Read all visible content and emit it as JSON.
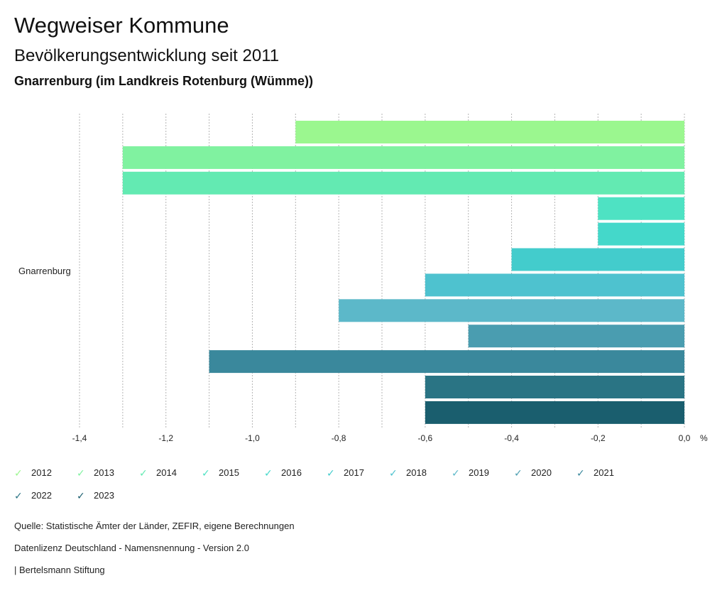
{
  "header": {
    "title": "Wegweiser Kommune",
    "subtitle": "Bevölkerungsentwicklung seit 2011",
    "region": "Gnarrenburg (im Landkreis Rotenburg (Wümme))"
  },
  "chart_data": {
    "type": "bar",
    "orientation": "horizontal",
    "category": "Gnarrenburg",
    "unit": "%",
    "xlim": [
      -1.4,
      0.0
    ],
    "ticks": [
      "-1,4",
      "-1,2",
      "-1,0",
      "-0,8",
      "-0,6",
      "-0,4",
      "-0,2",
      "0,0"
    ],
    "tick_values": [
      -1.4,
      -1.2,
      -1.0,
      -0.8,
      -0.6,
      -0.4,
      -0.2,
      0.0
    ],
    "series": [
      {
        "name": "2012",
        "value": -0.9,
        "color": "#9bf78f"
      },
      {
        "name": "2013",
        "value": -1.3,
        "color": "#80f2a0"
      },
      {
        "name": "2014",
        "value": -1.3,
        "color": "#63eab2"
      },
      {
        "name": "2015",
        "value": -0.2,
        "color": "#4ee2c3"
      },
      {
        "name": "2016",
        "value": -0.2,
        "color": "#44d8ca"
      },
      {
        "name": "2017",
        "value": -0.4,
        "color": "#43cccc"
      },
      {
        "name": "2018",
        "value": -0.6,
        "color": "#4ec2cf"
      },
      {
        "name": "2019",
        "value": -0.8,
        "color": "#5cb8c9"
      },
      {
        "name": "2020",
        "value": -0.5,
        "color": "#4a9db0"
      },
      {
        "name": "2021",
        "value": -1.1,
        "color": "#3a889c"
      },
      {
        "name": "2022",
        "value": -0.6,
        "color": "#2a7484"
      },
      {
        "name": "2023",
        "value": -0.6,
        "color": "#1a5e6e"
      }
    ]
  },
  "footer": {
    "source": "Quelle: Statistische Ämter der Länder, ZEFIR, eigene Berechnungen",
    "license": "Datenlizenz Deutschland - Namensnennung - Version 2.0",
    "brand": "| Bertelsmann Stiftung"
  }
}
